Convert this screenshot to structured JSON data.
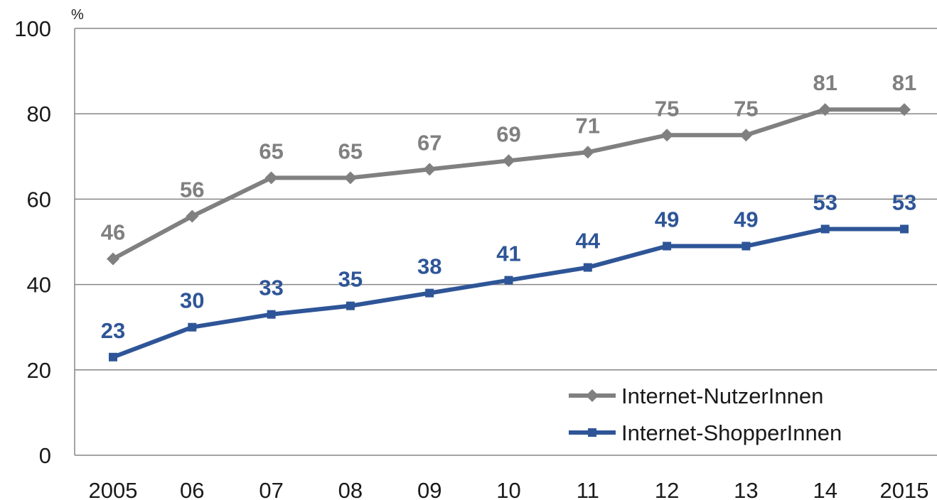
{
  "chart_data": {
    "type": "line",
    "y_unit": "%",
    "categories": [
      "2005",
      "06",
      "07",
      "08",
      "09",
      "10",
      "11",
      "12",
      "13",
      "14",
      "2015"
    ],
    "yticks": [
      "0",
      "20",
      "40",
      "60",
      "80",
      "100"
    ],
    "ylim": [
      0,
      100
    ],
    "grid": true,
    "legend_position": "bottom-right",
    "series": [
      {
        "name": "Internet-NutzerInnen",
        "values": [
          46,
          56,
          65,
          65,
          67,
          69,
          71,
          75,
          75,
          81,
          81
        ],
        "labels": [
          "46",
          "56",
          "65",
          "65",
          "67",
          "69",
          "71",
          "75",
          "75",
          "81",
          "81"
        ],
        "color": "#808080",
        "marker": "diamond"
      },
      {
        "name": "Internet-ShopperInnen",
        "values": [
          23,
          30,
          33,
          35,
          38,
          41,
          44,
          49,
          49,
          53,
          53
        ],
        "labels": [
          "23",
          "30",
          "33",
          "35",
          "38",
          "41",
          "44",
          "49",
          "49",
          "53",
          "53"
        ],
        "color": "#2e5597",
        "marker": "square"
      }
    ]
  }
}
